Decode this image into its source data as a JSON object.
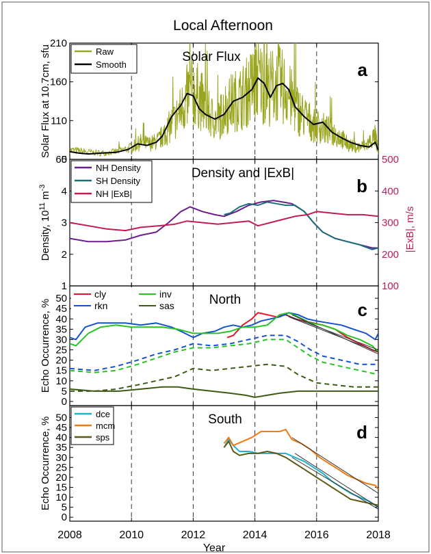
{
  "figure_title": "Local Afternoon",
  "xlabel": "Year",
  "x_ticks": [
    2008,
    2010,
    2012,
    2014,
    2016,
    2018
  ],
  "dashed_years": [
    2010,
    2012,
    2014,
    2016
  ],
  "chart_data": [
    {
      "panel": "a",
      "type": "line",
      "title": "Solar Flux",
      "ylabel": "Solar Flux at 10.7cm, sfu",
      "ylim": [
        60,
        210
      ],
      "yticks": [
        60,
        110,
        160,
        210
      ],
      "legend_placement": "top-left",
      "series": [
        {
          "name": "Raw",
          "color": "#9aa51e",
          "style": "solid",
          "noisy": true,
          "x": [
            2008.0,
            2008.5,
            2009.0,
            2009.5,
            2010.0,
            2010.3,
            2010.6,
            2010.9,
            2011.1,
            2011.4,
            2011.7,
            2011.9,
            2012.2,
            2012.5,
            2012.8,
            2013.0,
            2013.3,
            2013.6,
            2013.9,
            2014.1,
            2014.4,
            2014.7,
            2015.0,
            2015.3,
            2015.6,
            2015.9,
            2016.2,
            2016.5,
            2016.8,
            2017.0,
            2017.3,
            2017.6,
            2017.9,
            2018.0
          ],
          "y": [
            72,
            70,
            68,
            70,
            75,
            82,
            80,
            85,
            95,
            110,
            130,
            150,
            140,
            118,
            108,
            125,
            135,
            140,
            155,
            165,
            150,
            158,
            150,
            128,
            115,
            105,
            100,
            95,
            88,
            80,
            75,
            78,
            90,
            70
          ]
        },
        {
          "name": "Smooth",
          "color": "#000000",
          "style": "solid",
          "x": [
            2008.0,
            2008.3,
            2008.6,
            2009.0,
            2009.5,
            2009.9,
            2010.2,
            2010.5,
            2010.8,
            2011.0,
            2011.3,
            2011.6,
            2011.8,
            2012.0,
            2012.2,
            2012.4,
            2012.7,
            2013.0,
            2013.3,
            2013.6,
            2013.9,
            2014.1,
            2014.3,
            2014.5,
            2014.7,
            2014.9,
            2015.1,
            2015.3,
            2015.6,
            2015.9,
            2016.2,
            2016.5,
            2016.8,
            2017.1,
            2017.4,
            2017.7,
            2017.9,
            2018.0
          ],
          "y": [
            70,
            68,
            67,
            68,
            69,
            73,
            80,
            78,
            82,
            90,
            115,
            130,
            145,
            142,
            125,
            118,
            112,
            118,
            135,
            140,
            150,
            165,
            158,
            140,
            155,
            158,
            150,
            128,
            115,
            105,
            108,
            95,
            88,
            82,
            78,
            76,
            82,
            72
          ]
        }
      ]
    },
    {
      "panel": "b",
      "type": "line",
      "title": "Density and |ExB|",
      "ylabel": "Density, 10",
      "ylabel_exp": "11",
      "ylabel_unit": "m",
      "ylabel_unit_exp": "-3",
      "ylim": [
        1,
        5
      ],
      "yticks": [
        1,
        2,
        3,
        4,
        5
      ],
      "y2label": "|ExB|, m/s",
      "y2lim": [
        100,
        500
      ],
      "y2ticks": [
        100,
        200,
        300,
        400,
        500
      ],
      "legend_placement": "top-left",
      "series": [
        {
          "name": "NH Density",
          "color": "#6a1d8a",
          "axis": "left",
          "x": [
            2008.0,
            2008.6,
            2009.2,
            2009.8,
            2010.3,
            2010.8,
            2011.2,
            2011.6,
            2011.9,
            2012.3,
            2012.7,
            2013.0,
            2013.4,
            2013.8,
            2014.2,
            2014.6,
            2014.9,
            2015.2,
            2015.6,
            2015.9,
            2016.2,
            2016.6,
            2017.0,
            2017.4,
            2017.8,
            2018.0
          ],
          "y": [
            2.5,
            2.4,
            2.4,
            2.45,
            2.6,
            2.7,
            3.0,
            3.35,
            3.5,
            3.35,
            3.25,
            3.2,
            3.35,
            3.55,
            3.65,
            3.7,
            3.65,
            3.6,
            3.35,
            3.0,
            2.7,
            2.5,
            2.4,
            2.3,
            2.2,
            2.2
          ]
        },
        {
          "name": "SH Density",
          "color": "#1a6e7a",
          "axis": "left",
          "x": [
            2013.0,
            2013.2,
            2013.5,
            2013.8,
            2014.1,
            2014.4,
            2014.7,
            2015.0,
            2015.3,
            2015.6,
            2015.9,
            2016.2,
            2016.6,
            2017.0,
            2017.4,
            2017.8,
            2018.0
          ],
          "y": [
            3.25,
            3.3,
            3.5,
            3.6,
            3.55,
            3.65,
            3.6,
            3.55,
            3.55,
            3.35,
            3.0,
            2.7,
            2.5,
            2.4,
            2.3,
            2.15,
            2.2
          ]
        },
        {
          "name": "NH |ExB|",
          "color": "#c21a55",
          "axis": "right",
          "x": [
            2008.0,
            2008.6,
            2009.2,
            2009.8,
            2010.3,
            2010.9,
            2011.4,
            2011.8,
            2012.3,
            2012.8,
            2013.3,
            2013.8,
            2014.1,
            2014.5,
            2014.9,
            2015.3,
            2015.7,
            2016.0,
            2016.5,
            2017.0,
            2017.5,
            2018.0
          ],
          "y": [
            300,
            290,
            280,
            275,
            285,
            290,
            295,
            305,
            300,
            295,
            300,
            305,
            290,
            300,
            310,
            320,
            325,
            335,
            330,
            325,
            325,
            320
          ]
        }
      ]
    },
    {
      "panel": "c",
      "type": "line",
      "title": "North",
      "ylabel": "Echo Occurrence, %",
      "ylim": [
        -2,
        56
      ],
      "yticks": [
        0,
        5,
        10,
        15,
        20,
        25,
        30,
        35,
        40,
        45,
        50
      ],
      "legend_placement": "top-left",
      "series": [
        {
          "name": "cly",
          "color": "#e8132a",
          "x": [
            2013.1,
            2013.3,
            2013.6,
            2013.9,
            2014.1,
            2014.4,
            2014.7,
            2015.0,
            2015.3,
            2015.6,
            2015.9,
            2016.2,
            2016.6,
            2017.0,
            2017.4,
            2017.8,
            2018.0
          ],
          "y": [
            31,
            32,
            37,
            40,
            43,
            42,
            41,
            42,
            40,
            39,
            38,
            37,
            35,
            31,
            28,
            25,
            24
          ]
        },
        {
          "name": "rkn",
          "color": "#1550d0",
          "x": [
            2008.0,
            2008.2,
            2008.5,
            2008.9,
            2009.3,
            2009.8,
            2010.3,
            2010.8,
            2011.3,
            2011.6,
            2012.0,
            2012.3,
            2012.7,
            2013.0,
            2013.3,
            2013.6,
            2013.9,
            2014.2,
            2014.5,
            2014.8,
            2015.1,
            2015.4,
            2015.7,
            2016.0,
            2016.4,
            2016.8,
            2017.2,
            2017.6,
            2017.9,
            2018.0
          ],
          "y": [
            31,
            30,
            36,
            38,
            38,
            38,
            37,
            38,
            36,
            34,
            31,
            33,
            34,
            36,
            37,
            36,
            37,
            39,
            40,
            41,
            43,
            42,
            40,
            39,
            38,
            37,
            35,
            33,
            30,
            33
          ]
        },
        {
          "name": "inv",
          "color": "#26c422",
          "x": [
            2008.0,
            2008.2,
            2008.6,
            2009.0,
            2009.5,
            2010.0,
            2010.5,
            2011.0,
            2011.5,
            2012.0,
            2012.4,
            2012.8,
            2013.2,
            2013.6,
            2014.0,
            2014.4,
            2014.8,
            2015.1,
            2015.4,
            2015.8,
            2016.2,
            2016.6,
            2017.0,
            2017.4,
            2017.8,
            2018.0
          ],
          "y": [
            28,
            27,
            33,
            36,
            37,
            36,
            36,
            36,
            35,
            33,
            33,
            33,
            34,
            36,
            36,
            37,
            42,
            43,
            41,
            38,
            37,
            35,
            32,
            30,
            27,
            24
          ]
        },
        {
          "name": "sas",
          "color": "#3c5a14",
          "x": [
            2008.0,
            2008.8,
            2009.6,
            2010.3,
            2011.0,
            2011.5,
            2012.0,
            2012.6,
            2013.2,
            2013.7,
            2014.0,
            2014.4,
            2014.8,
            2015.4,
            2016.0,
            2016.6,
            2017.2,
            2017.8,
            2018.0
          ],
          "y": [
            6,
            5,
            5,
            6,
            7,
            7,
            6,
            5,
            4,
            3,
            2,
            3,
            4,
            5,
            5,
            5,
            5,
            5,
            5
          ]
        },
        {
          "name": "",
          "color": "#1550d0",
          "style": "dashed",
          "x": [
            2008.0,
            2008.8,
            2009.5,
            2010.2,
            2010.8,
            2011.4,
            2012.0,
            2012.6,
            2013.2,
            2013.8,
            2014.4,
            2015.0,
            2015.4,
            2015.8,
            2016.2,
            2016.8,
            2017.4,
            2018.0
          ],
          "y": [
            16,
            15,
            17,
            20,
            23,
            25,
            28,
            27,
            28,
            30,
            32,
            32,
            29,
            25,
            22,
            20,
            18,
            18
          ]
        },
        {
          "name": "",
          "color": "#26c422",
          "style": "dashed",
          "x": [
            2008.0,
            2008.8,
            2009.5,
            2010.2,
            2010.8,
            2011.4,
            2012.0,
            2012.6,
            2013.2,
            2013.8,
            2014.4,
            2015.0,
            2015.4,
            2015.8,
            2016.2,
            2016.8,
            2017.4,
            2018.0
          ],
          "y": [
            15,
            14,
            15,
            18,
            21,
            24,
            26,
            26,
            27,
            28,
            30,
            30,
            26,
            22,
            19,
            17,
            15,
            13
          ]
        },
        {
          "name": "",
          "color": "#3c5a14",
          "style": "dashed",
          "x": [
            2008.0,
            2008.8,
            2009.5,
            2010.2,
            2010.8,
            2011.4,
            2012.0,
            2012.6,
            2013.2,
            2013.8,
            2014.4,
            2015.0,
            2015.4,
            2016.0,
            2016.6,
            2017.2,
            2018.0
          ],
          "y": [
            5,
            5,
            6,
            8,
            10,
            12,
            16,
            15,
            16,
            17,
            18,
            17,
            13,
            9,
            8,
            7,
            7
          ]
        }
      ],
      "trend_lines": [
        {
          "color": "#1550d0",
          "x": [
            2015.0,
            2018.0
          ],
          "y": [
            42,
            25
          ]
        },
        {
          "color": "#e8132a",
          "x": [
            2015.2,
            2018.0
          ],
          "y": [
            42,
            23
          ]
        },
        {
          "color": "#26c422",
          "x": [
            2015.1,
            2018.0
          ],
          "y": [
            41,
            24
          ]
        }
      ]
    },
    {
      "panel": "d",
      "type": "line",
      "title": "South",
      "ylabel": "Echo Occurrence, %",
      "ylim": [
        -2,
        56
      ],
      "yticks": [
        0,
        5,
        10,
        15,
        20,
        25,
        30,
        35,
        40,
        45,
        50
      ],
      "legend_placement": "top-left",
      "series": [
        {
          "name": "dce",
          "color": "#1db1d0",
          "x": [
            2013.0,
            2013.15,
            2013.3,
            2013.5,
            2013.8,
            2014.1,
            2014.4,
            2014.7,
            2015.0,
            2015.3,
            2015.6,
            2015.9,
            2016.2,
            2016.5,
            2016.8,
            2017.1,
            2017.4,
            2017.7,
            2018.0
          ],
          "y": [
            35,
            39,
            36,
            33,
            33,
            32,
            32,
            32,
            32,
            30,
            28,
            25,
            22,
            18,
            15,
            12,
            10,
            8,
            5
          ]
        },
        {
          "name": "mcm",
          "color": "#ee7a12",
          "x": [
            2013.0,
            2013.15,
            2013.3,
            2013.6,
            2013.9,
            2014.2,
            2014.5,
            2014.8,
            2015.0,
            2015.2,
            2015.5,
            2015.8,
            2016.1,
            2016.4,
            2016.7,
            2017.0,
            2017.3,
            2017.6,
            2017.9,
            2018.0
          ],
          "y": [
            37,
            40,
            36,
            38,
            40,
            43,
            43,
            43,
            44,
            39,
            37,
            34,
            30,
            27,
            24,
            21,
            19,
            17,
            16,
            14
          ]
        },
        {
          "name": "sps",
          "color": "#5e5814",
          "x": [
            2013.0,
            2013.15,
            2013.3,
            2013.5,
            2013.8,
            2014.1,
            2014.4,
            2014.7,
            2015.0,
            2015.3,
            2015.6,
            2015.9,
            2016.2,
            2016.5,
            2016.8,
            2017.1,
            2017.4,
            2017.7,
            2018.0
          ],
          "y": [
            35,
            38,
            33,
            31,
            32,
            32,
            33,
            32,
            30,
            27,
            24,
            21,
            18,
            15,
            12,
            9,
            8,
            7,
            6
          ]
        }
      ],
      "trend_lines": [
        {
          "color": "#ee7a12",
          "x": [
            2015.2,
            2018.0
          ],
          "y": [
            40,
            12
          ]
        },
        {
          "color": "#1db1d0",
          "x": [
            2015.3,
            2018.0
          ],
          "y": [
            32,
            5
          ]
        },
        {
          "color": "#5e5814",
          "x": [
            2015.2,
            2018.0
          ],
          "y": [
            30,
            4
          ]
        }
      ]
    }
  ]
}
